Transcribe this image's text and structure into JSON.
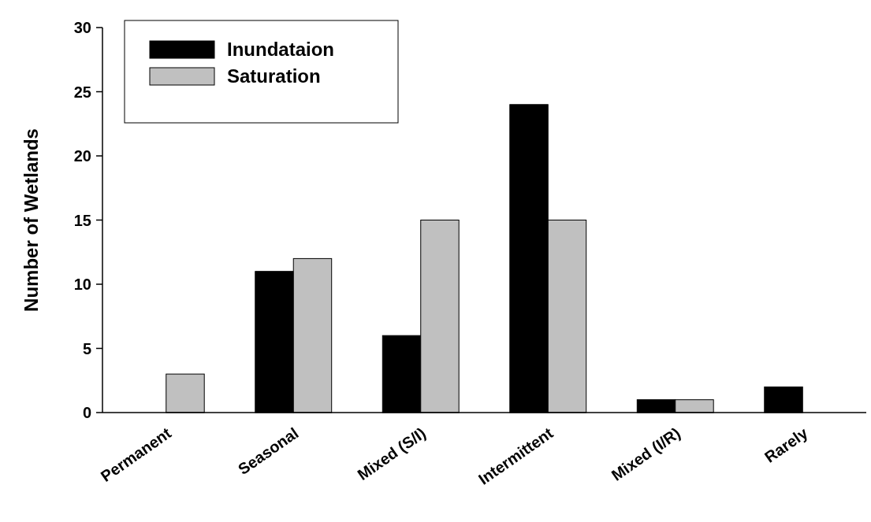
{
  "chart_data": {
    "type": "bar",
    "ylabel": "Number of Wetlands",
    "categories": [
      "Permanent",
      "Seasonal",
      "Mixed (S/I)",
      "Intermittent",
      "Mixed (I/R)",
      "Rarely"
    ],
    "series": [
      {
        "name": "Inundataion",
        "color": "#000000",
        "values": [
          0,
          11,
          6,
          24,
          1,
          2
        ]
      },
      {
        "name": "Saturation",
        "color": "#c0c0c0",
        "values": [
          3,
          12,
          15,
          15,
          1,
          0
        ]
      }
    ],
    "ylim": [
      0,
      30
    ],
    "yticks": [
      0,
      5,
      10,
      15,
      20,
      25,
      30
    ],
    "grid": false,
    "legend": "top left"
  }
}
